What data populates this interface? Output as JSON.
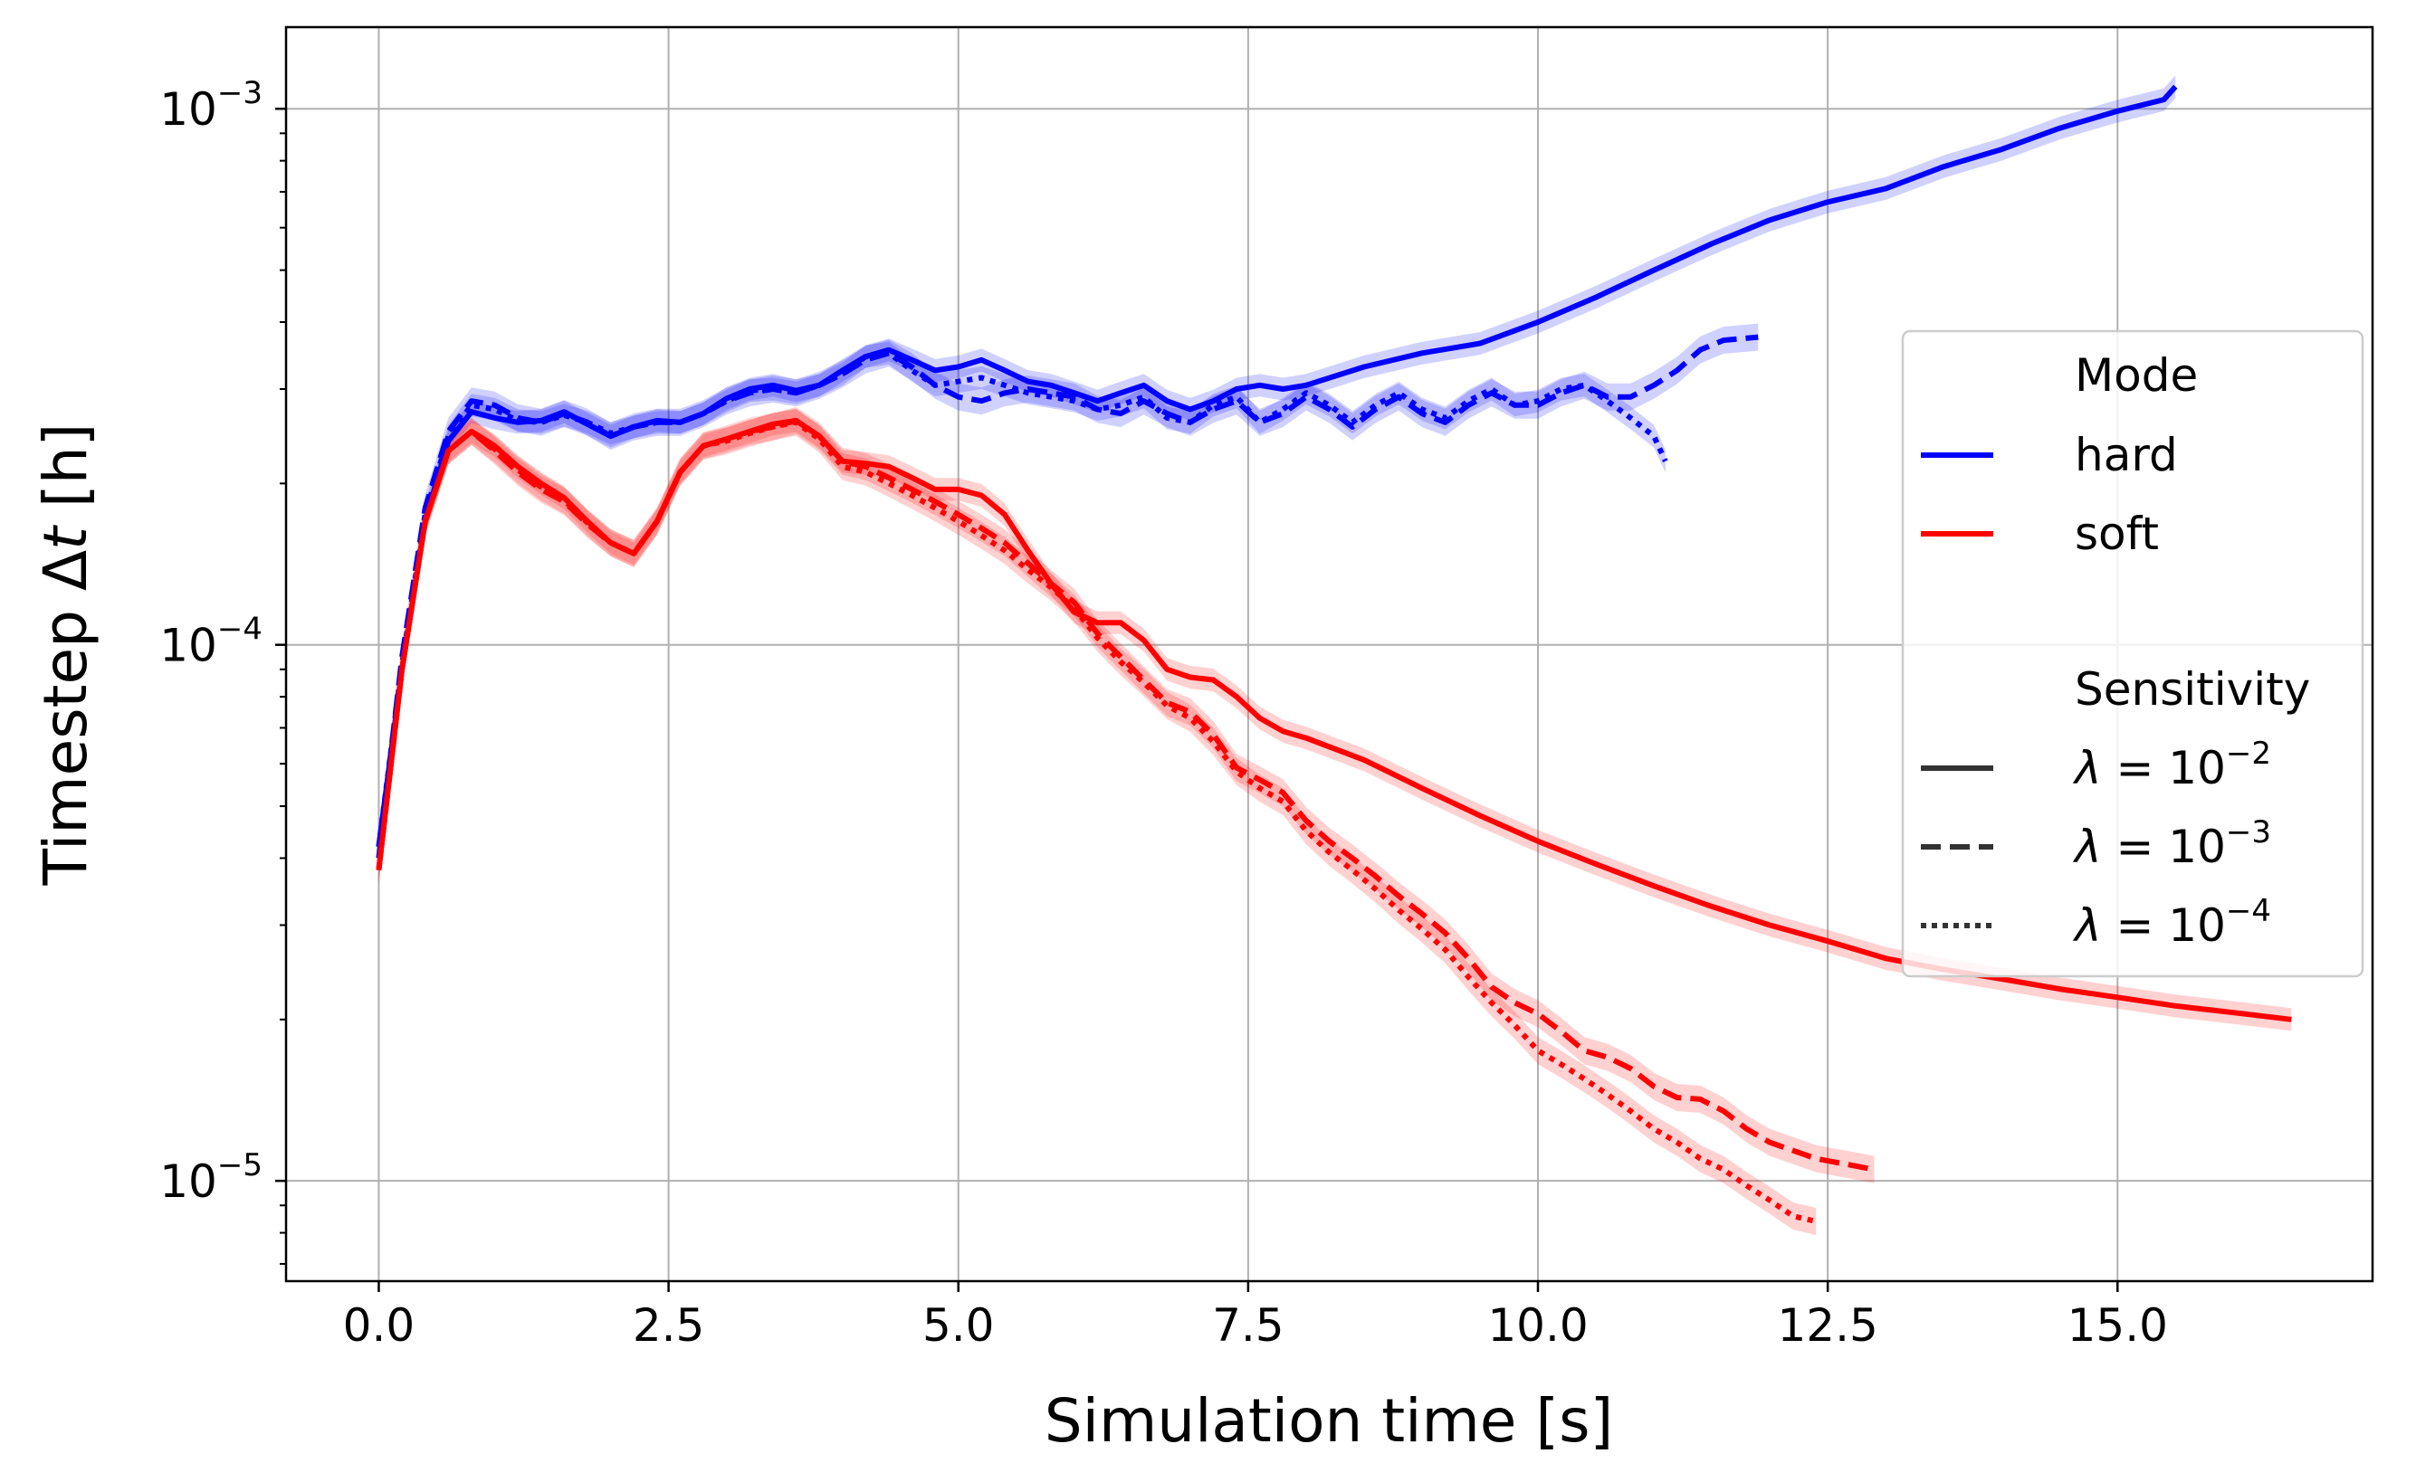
{
  "chart_data": {
    "type": "line",
    "title": "",
    "xlabel": "Simulation time [s]",
    "ylabel_prefix": "Timestep Δ",
    "ylabel_var": "t",
    "ylabel_suffix": " [h]",
    "yscale": "log",
    "xlim": [
      -0.8,
      17.2
    ],
    "ylim": [
      6.5e-06,
      0.00142
    ],
    "x_ticks": [
      {
        "value": 0.0,
        "label": "0.0"
      },
      {
        "value": 2.5,
        "label": "2.5"
      },
      {
        "value": 5.0,
        "label": "5.0"
      },
      {
        "value": 7.5,
        "label": "7.5"
      },
      {
        "value": 10.0,
        "label": "10.0"
      },
      {
        "value": 12.5,
        "label": "12.5"
      },
      {
        "value": 15.0,
        "label": "15.0"
      }
    ],
    "y_ticks": [
      {
        "value": 1e-05,
        "base": "10",
        "exp": "−5"
      },
      {
        "value": 0.0001,
        "base": "10",
        "exp": "−4"
      },
      {
        "value": 0.001,
        "base": "10",
        "exp": "−3"
      }
    ],
    "grid": true,
    "colors": {
      "hard": "#0000ff",
      "soft": "#ff0000",
      "legend_style": "#333333",
      "grid": "#b0b0b0"
    },
    "legend": {
      "position": "right",
      "mode_title": "Mode",
      "modes": [
        {
          "label": "hard",
          "color": "#0000ff"
        },
        {
          "label": "soft",
          "color": "#ff0000"
        }
      ],
      "sensitivity_title": "Sensitivity",
      "sensitivities": [
        {
          "style": "solid",
          "symbol": "λ",
          "base": "10",
          "exp": "−2"
        },
        {
          "style": "dashed",
          "symbol": "λ",
          "base": "10",
          "exp": "−3"
        },
        {
          "style": "dotted",
          "symbol": "λ",
          "base": "10",
          "exp": "−4"
        }
      ]
    },
    "series": [
      {
        "name": "hard λ=1e-2",
        "mode": "hard",
        "style": "solid",
        "band": 0.05,
        "x": [
          0,
          0.2,
          0.4,
          0.6,
          0.8,
          1.0,
          1.2,
          1.4,
          1.6,
          1.8,
          2.0,
          2.2,
          2.4,
          2.6,
          2.8,
          3.0,
          3.2,
          3.4,
          3.6,
          3.8,
          4.0,
          4.2,
          4.4,
          4.6,
          4.8,
          5.0,
          5.2,
          5.4,
          5.6,
          5.8,
          6.0,
          6.2,
          6.4,
          6.6,
          6.8,
          7.0,
          7.2,
          7.4,
          7.6,
          7.8,
          8.0,
          8.5,
          9.0,
          9.5,
          10.0,
          10.5,
          11.0,
          11.5,
          12.0,
          12.5,
          13.0,
          13.5,
          14.0,
          14.5,
          15.0,
          15.4,
          15.5
        ],
        "y": [
          4.2e-05,
          9e-05,
          0.00017,
          0.00024,
          0.000272,
          0.000265,
          0.00026,
          0.000262,
          0.000272,
          0.000258,
          0.000245,
          0.000255,
          0.000262,
          0.00026,
          0.00027,
          0.000288,
          0.0003,
          0.000305,
          0.000298,
          0.000305,
          0.000325,
          0.000345,
          0.000355,
          0.00034,
          0.000325,
          0.00033,
          0.00034,
          0.000325,
          0.00031,
          0.000305,
          0.000295,
          0.000285,
          0.000295,
          0.000305,
          0.000285,
          0.000275,
          0.000285,
          0.0003,
          0.000305,
          0.0003,
          0.000305,
          0.00033,
          0.00035,
          0.000365,
          0.0004,
          0.000445,
          0.0005,
          0.00056,
          0.00062,
          0.00067,
          0.00071,
          0.00078,
          0.00084,
          0.00092,
          0.00099,
          0.00104,
          0.0011
        ]
      },
      {
        "name": "hard λ=1e-3",
        "mode": "hard",
        "style": "dashed",
        "band": 0.06,
        "x": [
          0,
          0.2,
          0.4,
          0.6,
          0.8,
          1.0,
          1.2,
          1.4,
          1.6,
          1.8,
          2.0,
          2.2,
          2.4,
          2.6,
          2.8,
          3.0,
          3.2,
          3.4,
          3.6,
          3.8,
          4.0,
          4.2,
          4.4,
          4.6,
          4.8,
          5.0,
          5.2,
          5.4,
          5.6,
          5.8,
          6.0,
          6.2,
          6.4,
          6.6,
          6.8,
          7.0,
          7.2,
          7.4,
          7.6,
          7.8,
          8.0,
          8.2,
          8.4,
          8.6,
          8.8,
          9.0,
          9.2,
          9.4,
          9.6,
          9.8,
          10.0,
          10.2,
          10.4,
          10.6,
          10.8,
          11.0,
          11.2,
          11.4,
          11.6,
          11.9
        ],
        "y": [
          4e-05,
          9.5e-05,
          0.00018,
          0.00025,
          0.000285,
          0.00028,
          0.000265,
          0.00026,
          0.00027,
          0.00026,
          0.000245,
          0.000255,
          0.00026,
          0.00026,
          0.00027,
          0.000285,
          0.000295,
          0.0003,
          0.000295,
          0.000305,
          0.00032,
          0.00034,
          0.00035,
          0.00033,
          0.000305,
          0.00029,
          0.000285,
          0.000295,
          0.0003,
          0.000295,
          0.00029,
          0.000275,
          0.00027,
          0.000285,
          0.00027,
          0.00026,
          0.000275,
          0.000285,
          0.00026,
          0.00027,
          0.00029,
          0.000275,
          0.000255,
          0.000275,
          0.00029,
          0.00027,
          0.00026,
          0.00028,
          0.000295,
          0.00028,
          0.00028,
          0.000295,
          0.000305,
          0.00029,
          0.00029,
          0.000305,
          0.000325,
          0.000355,
          0.00037,
          0.000375
        ]
      },
      {
        "name": "hard λ=1e-4",
        "mode": "hard",
        "style": "dotted",
        "band": 0.05,
        "x": [
          0,
          0.2,
          0.4,
          0.6,
          0.8,
          1.0,
          1.2,
          1.4,
          1.6,
          1.8,
          2.0,
          2.2,
          2.4,
          2.6,
          2.8,
          3.0,
          3.2,
          3.4,
          3.6,
          3.8,
          4.0,
          4.2,
          4.4,
          4.6,
          4.8,
          5.0,
          5.2,
          5.4,
          5.6,
          5.8,
          6.0,
          6.2,
          6.4,
          6.6,
          6.8,
          7.0,
          7.2,
          7.4,
          7.6,
          7.8,
          8.0,
          8.2,
          8.4,
          8.6,
          8.8,
          9.0,
          9.2,
          9.4,
          9.6,
          9.8,
          10.0,
          10.2,
          10.4,
          10.6,
          10.8,
          11.0,
          11.1
        ],
        "y": [
          4.2e-05,
          9.2e-05,
          0.000175,
          0.000245,
          0.00028,
          0.000275,
          0.000262,
          0.00026,
          0.000268,
          0.00026,
          0.000248,
          0.000255,
          0.00026,
          0.00026,
          0.00027,
          0.000285,
          0.000298,
          0.0003,
          0.000295,
          0.000305,
          0.00032,
          0.000345,
          0.00035,
          0.000325,
          0.000305,
          0.00031,
          0.000315,
          0.000305,
          0.000295,
          0.00029,
          0.000285,
          0.000275,
          0.00028,
          0.00029,
          0.000265,
          0.00026,
          0.00028,
          0.00029,
          0.00026,
          0.000275,
          0.000295,
          0.00028,
          0.00026,
          0.00028,
          0.000295,
          0.000275,
          0.000265,
          0.000285,
          0.0003,
          0.00028,
          0.000285,
          0.0003,
          0.000305,
          0.000285,
          0.000265,
          0.000245,
          0.00022
        ]
      },
      {
        "name": "soft λ=1e-2",
        "mode": "soft",
        "style": "solid",
        "band": 0.05,
        "x": [
          0,
          0.2,
          0.4,
          0.6,
          0.8,
          1.0,
          1.2,
          1.4,
          1.6,
          1.8,
          2.0,
          2.2,
          2.4,
          2.6,
          2.8,
          3.0,
          3.2,
          3.4,
          3.6,
          3.8,
          4.0,
          4.2,
          4.4,
          4.6,
          4.8,
          5.0,
          5.2,
          5.4,
          5.6,
          5.8,
          6.0,
          6.2,
          6.4,
          6.6,
          6.8,
          7.0,
          7.2,
          7.4,
          7.6,
          7.8,
          8.0,
          8.5,
          9.0,
          9.5,
          10.0,
          10.5,
          11.0,
          11.5,
          12.0,
          12.5,
          13.0,
          13.5,
          14.0,
          14.5,
          15.0,
          15.5,
          16.0,
          16.5
        ],
        "y": [
          3.8e-05,
          9e-05,
          0.00017,
          0.00023,
          0.00025,
          0.000235,
          0.000215,
          0.0002,
          0.000188,
          0.00017,
          0.000155,
          0.000148,
          0.00017,
          0.00021,
          0.000235,
          0.000242,
          0.00025,
          0.000258,
          0.000262,
          0.000245,
          0.00022,
          0.000218,
          0.000215,
          0.000205,
          0.000195,
          0.000195,
          0.00019,
          0.000175,
          0.00015,
          0.00013,
          0.000115,
          0.00011,
          0.00011,
          0.000102,
          9e-05,
          8.7e-05,
          8.6e-05,
          8e-05,
          7.3e-05,
          6.9e-05,
          6.7e-05,
          6.1e-05,
          5.4e-05,
          4.8e-05,
          4.3e-05,
          3.9e-05,
          3.55e-05,
          3.25e-05,
          3e-05,
          2.8e-05,
          2.6e-05,
          2.48e-05,
          2.38e-05,
          2.28e-05,
          2.2e-05,
          2.12e-05,
          2.06e-05,
          2e-05
        ]
      },
      {
        "name": "soft λ=1e-3",
        "mode": "soft",
        "style": "dashed",
        "band": 0.06,
        "x": [
          0,
          0.2,
          0.4,
          0.6,
          0.8,
          1.0,
          1.2,
          1.4,
          1.6,
          1.8,
          2.0,
          2.2,
          2.4,
          2.6,
          2.8,
          3.0,
          3.2,
          3.4,
          3.6,
          3.8,
          4.0,
          4.2,
          4.4,
          4.6,
          4.8,
          5.0,
          5.2,
          5.4,
          5.6,
          5.8,
          6.0,
          6.2,
          6.4,
          6.6,
          6.8,
          7.0,
          7.2,
          7.4,
          7.6,
          7.8,
          8.0,
          8.2,
          8.4,
          8.6,
          8.8,
          9.0,
          9.2,
          9.4,
          9.6,
          9.8,
          10.0,
          10.2,
          10.4,
          10.6,
          10.8,
          11.0,
          11.2,
          11.4,
          11.6,
          11.8,
          12.0,
          12.4,
          12.9
        ],
        "y": [
          3.8e-05,
          9e-05,
          0.00017,
          0.00023,
          0.00025,
          0.00023,
          0.00021,
          0.000195,
          0.000185,
          0.000168,
          0.000155,
          0.000148,
          0.00017,
          0.00021,
          0.000235,
          0.000242,
          0.00025,
          0.000255,
          0.000262,
          0.000245,
          0.00022,
          0.000215,
          0.000205,
          0.000195,
          0.000185,
          0.000175,
          0.000165,
          0.000155,
          0.000142,
          0.00013,
          0.00012,
          0.000105,
          9.5e-05,
          8.6e-05,
          7.8e-05,
          7.5e-05,
          6.8e-05,
          5.9e-05,
          5.6e-05,
          5.3e-05,
          4.7e-05,
          4.3e-05,
          4e-05,
          3.7e-05,
          3.4e-05,
          3.15e-05,
          2.9e-05,
          2.6e-05,
          2.3e-05,
          2.15e-05,
          2.05e-05,
          1.9e-05,
          1.75e-05,
          1.7e-05,
          1.62e-05,
          1.5e-05,
          1.43e-05,
          1.42e-05,
          1.35e-05,
          1.25e-05,
          1.18e-05,
          1.1e-05,
          1.05e-05
        ]
      },
      {
        "name": "soft λ=1e-4",
        "mode": "soft",
        "style": "dotted",
        "band": 0.06,
        "x": [
          0,
          0.2,
          0.4,
          0.6,
          0.8,
          1.0,
          1.2,
          1.4,
          1.6,
          1.8,
          2.0,
          2.2,
          2.4,
          2.6,
          2.8,
          3.0,
          3.2,
          3.4,
          3.6,
          3.8,
          4.0,
          4.2,
          4.4,
          4.6,
          4.8,
          5.0,
          5.2,
          5.4,
          5.6,
          5.8,
          6.0,
          6.2,
          6.4,
          6.6,
          6.8,
          7.0,
          7.2,
          7.4,
          7.6,
          7.8,
          8.0,
          8.2,
          8.4,
          8.6,
          8.8,
          9.0,
          9.2,
          9.4,
          9.6,
          9.8,
          10.0,
          10.2,
          10.4,
          10.6,
          10.8,
          11.0,
          11.2,
          11.4,
          11.6,
          11.8,
          12.0,
          12.2,
          12.4
        ],
        "y": [
          3.8e-05,
          9e-05,
          0.00017,
          0.00023,
          0.00025,
          0.000232,
          0.000212,
          0.000197,
          0.000186,
          0.000169,
          0.000155,
          0.000148,
          0.00017,
          0.00021,
          0.000235,
          0.00024,
          0.000248,
          0.000255,
          0.00026,
          0.000242,
          0.000215,
          0.00021,
          0.0002,
          0.00019,
          0.00018,
          0.00017,
          0.00016,
          0.00015,
          0.000138,
          0.000128,
          0.000117,
          0.000103,
          9.3e-05,
          8.5e-05,
          7.7e-05,
          7.3e-05,
          6.6e-05,
          5.8e-05,
          5.4e-05,
          5.1e-05,
          4.5e-05,
          4.1e-05,
          3.8e-05,
          3.5e-05,
          3.2e-05,
          2.95e-05,
          2.7e-05,
          2.4e-05,
          2.15e-05,
          1.95e-05,
          1.75e-05,
          1.65e-05,
          1.55e-05,
          1.45e-05,
          1.35e-05,
          1.25e-05,
          1.18e-05,
          1.1e-05,
          1.05e-05,
          9.8e-06,
          9.2e-06,
          8.6e-06,
          8.4e-06
        ]
      }
    ]
  }
}
